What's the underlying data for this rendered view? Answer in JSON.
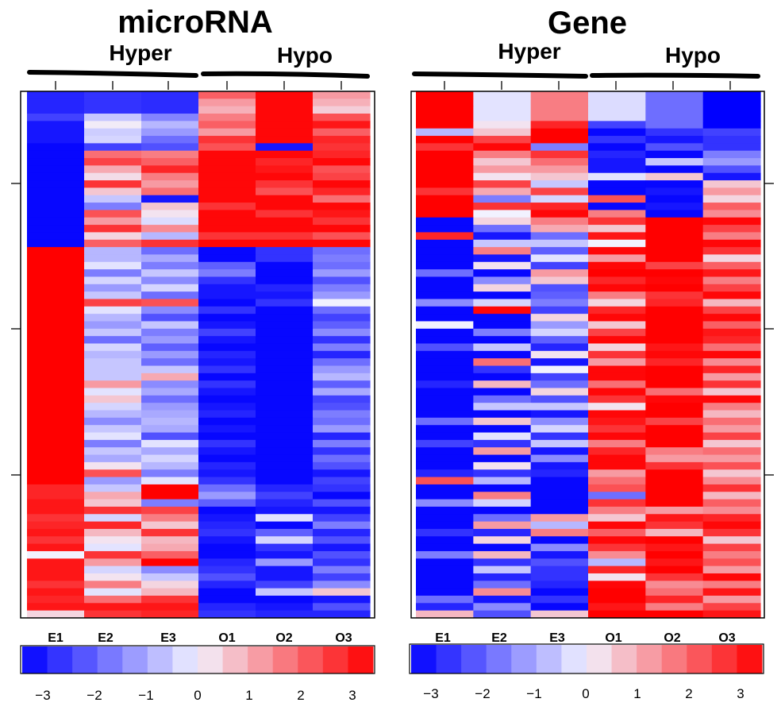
{
  "colors": {
    "low": "#0000ff",
    "mid": "#f2f2ff",
    "high": "#ff0000"
  },
  "chart_data": [
    {
      "type": "heatmap",
      "title": "microRNA",
      "groups": [
        "Hyper",
        "Hypo"
      ],
      "samples": [
        "E1",
        "E2",
        "E3",
        "O1",
        "O2",
        "O3"
      ],
      "color_scale": {
        "min": -3.3,
        "max": 3.3,
        "ticks": [
          "−3",
          "−2",
          "−1",
          "0",
          "1",
          "2",
          "3"
        ]
      },
      "rows": [
        [
          -2.8,
          -2.6,
          -2.7,
          2.0,
          3.2,
          1.2
        ],
        [
          -2.8,
          -2.6,
          -2.7,
          1.2,
          3.2,
          0.9
        ],
        [
          -2.8,
          -2.6,
          -2.7,
          0.9,
          3.2,
          0.5
        ],
        [
          -2.4,
          -0.6,
          -1.5,
          1.6,
          3.2,
          2.2
        ],
        [
          -3.0,
          0.1,
          -0.8,
          2.0,
          3.2,
          3.0
        ],
        [
          -3.0,
          -0.5,
          -1.2,
          1.2,
          3.2,
          2.0
        ],
        [
          -3.0,
          -0.4,
          -1.8,
          2.6,
          3.2,
          2.8
        ],
        [
          -3.2,
          -2.4,
          -2.2,
          2.2,
          -3.0,
          2.6
        ],
        [
          -3.2,
          1.8,
          1.6,
          3.2,
          3.2,
          2.8
        ],
        [
          -3.2,
          2.4,
          2.0,
          3.2,
          2.8,
          3.2
        ],
        [
          -3.2,
          1.0,
          2.8,
          3.2,
          3.0,
          2.2
        ],
        [
          -3.2,
          0.3,
          1.6,
          3.2,
          3.2,
          2.4
        ],
        [
          -3.2,
          2.6,
          1.2,
          3.2,
          2.6,
          3.2
        ],
        [
          -3.2,
          0.6,
          1.8,
          3.2,
          2.2,
          2.8
        ],
        [
          -3.2,
          -0.6,
          -3.0,
          3.2,
          3.2,
          1.8
        ],
        [
          -3.2,
          -1.6,
          0.6,
          2.6,
          3.2,
          3.2
        ],
        [
          -3.2,
          2.2,
          0.2,
          3.2,
          2.6,
          3.0
        ],
        [
          -3.2,
          1.2,
          -0.3,
          3.2,
          3.2,
          2.6
        ],
        [
          -3.2,
          2.6,
          1.4,
          3.2,
          3.2,
          3.2
        ],
        [
          -3.2,
          0.4,
          -0.8,
          2.6,
          2.6,
          2.2
        ],
        [
          -3.2,
          2.0,
          2.6,
          3.2,
          3.2,
          3.2
        ],
        [
          3.3,
          -0.8,
          -1.8,
          -3.2,
          -2.6,
          -1.8
        ],
        [
          3.3,
          -0.8,
          -1.0,
          -3.2,
          -2.6,
          -1.6
        ],
        [
          3.3,
          -0.2,
          -1.6,
          -2.0,
          -3.2,
          -1.8
        ],
        [
          3.3,
          -1.6,
          -0.6,
          -1.6,
          -3.2,
          -1.2
        ],
        [
          3.3,
          -0.4,
          -1.4,
          -2.6,
          -3.2,
          -2.2
        ],
        [
          3.3,
          -1.2,
          -0.4,
          -3.0,
          -2.8,
          -1.6
        ],
        [
          3.3,
          -0.6,
          -1.8,
          -3.0,
          -3.0,
          -1.2
        ],
        [
          3.3,
          2.4,
          2.2,
          -3.2,
          -2.6,
          0.0
        ],
        [
          3.3,
          -0.2,
          -1.4,
          -2.6,
          -3.2,
          -1.8
        ],
        [
          3.3,
          -0.8,
          -2.2,
          -3.2,
          -3.2,
          -2.4
        ],
        [
          3.3,
          -1.2,
          -0.6,
          -3.0,
          -3.2,
          -2.0
        ],
        [
          3.3,
          -0.6,
          -1.6,
          -2.4,
          -3.2,
          -1.4
        ],
        [
          3.3,
          -1.8,
          -1.2,
          -3.0,
          -3.2,
          -2.6
        ],
        [
          3.3,
          -0.4,
          -2.0,
          -3.2,
          -3.2,
          -1.6
        ],
        [
          3.3,
          -0.8,
          -1.2,
          -2.8,
          -3.2,
          -2.8
        ],
        [
          3.3,
          -0.6,
          -1.8,
          -3.0,
          -3.2,
          -1.8
        ],
        [
          3.3,
          -0.6,
          -0.6,
          -2.6,
          -3.2,
          -1.2
        ],
        [
          3.3,
          -0.6,
          1.0,
          -3.2,
          -3.2,
          -0.8
        ],
        [
          3.3,
          1.2,
          -1.4,
          -2.6,
          -3.2,
          -2.0
        ],
        [
          3.3,
          -0.2,
          -1.0,
          -3.0,
          -3.2,
          -1.0
        ],
        [
          3.3,
          0.6,
          -1.8,
          -3.2,
          -3.2,
          -2.4
        ],
        [
          3.3,
          -0.4,
          -1.2,
          -3.0,
          -3.2,
          -2.2
        ],
        [
          3.3,
          -0.8,
          -1.0,
          -2.8,
          -3.2,
          -1.6
        ],
        [
          3.3,
          -1.4,
          -0.8,
          -3.2,
          -3.2,
          -1.8
        ],
        [
          3.3,
          -0.6,
          -1.0,
          -3.0,
          -3.2,
          -1.2
        ],
        [
          3.3,
          -0.2,
          -2.2,
          -3.2,
          -3.2,
          -2.8
        ],
        [
          3.3,
          -1.6,
          -0.2,
          -2.6,
          -3.2,
          -1.6
        ],
        [
          3.3,
          -0.6,
          -1.0,
          -3.0,
          -3.2,
          -2.6
        ],
        [
          3.3,
          -1.0,
          -0.4,
          -3.2,
          -3.2,
          -1.8
        ],
        [
          3.3,
          0.2,
          -0.8,
          -2.8,
          -3.2,
          -2.2
        ],
        [
          3.3,
          2.2,
          -1.6,
          -3.0,
          -3.2,
          -3.0
        ],
        [
          3.3,
          -1.2,
          -0.2,
          -2.6,
          -3.2,
          -2.4
        ],
        [
          2.8,
          -0.6,
          3.3,
          -1.8,
          -2.8,
          -2.6
        ],
        [
          2.8,
          1.0,
          3.3,
          -1.2,
          -2.4,
          -3.2
        ],
        [
          3.0,
          0.6,
          -1.6,
          -2.0,
          -2.8,
          -2.2
        ],
        [
          3.0,
          2.6,
          2.4,
          -3.2,
          -3.0,
          -3.0
        ],
        [
          2.6,
          -0.4,
          1.6,
          -3.0,
          -0.2,
          -2.4
        ],
        [
          2.8,
          2.8,
          0.6,
          -2.8,
          -3.2,
          -1.6
        ],
        [
          3.0,
          0.8,
          2.6,
          -2.6,
          -2.0,
          -2.8
        ],
        [
          2.6,
          0.2,
          0.8,
          -3.0,
          -0.4,
          -2.2
        ],
        [
          3.0,
          -0.2,
          1.0,
          -3.2,
          -2.6,
          -3.0
        ],
        [
          0.0,
          2.6,
          2.0,
          -3.2,
          -3.0,
          -2.2
        ],
        [
          3.0,
          1.2,
          3.3,
          -2.8,
          -1.2,
          -2.6
        ],
        [
          3.0,
          -0.4,
          -1.4,
          -2.6,
          -3.0,
          -1.6
        ],
        [
          3.0,
          0.2,
          -0.6,
          -2.2,
          -3.0,
          -2.4
        ],
        [
          2.6,
          1.6,
          0.4,
          -2.8,
          -2.4,
          -1.4
        ],
        [
          3.0,
          -0.2,
          0.8,
          -3.2,
          -0.6,
          0.6
        ],
        [
          2.8,
          1.8,
          2.6,
          -3.2,
          -3.2,
          -3.0
        ],
        [
          3.0,
          3.0,
          3.0,
          -2.8,
          -3.0,
          -2.2
        ],
        [
          0.4,
          2.6,
          2.8,
          -2.6,
          -2.8,
          -2.8
        ]
      ]
    },
    {
      "type": "heatmap",
      "title": "Gene",
      "groups": [
        "Hyper",
        "Hypo"
      ],
      "samples": [
        "E1",
        "E2",
        "E3",
        "O1",
        "O2",
        "O3"
      ],
      "color_scale": {
        "min": -3.3,
        "max": 3.3,
        "ticks": [
          "−3",
          "−2",
          "−1",
          "0",
          "1",
          "2",
          "3"
        ]
      },
      "rows": [
        [
          3.3,
          -0.2,
          1.6,
          -0.3,
          -1.8,
          -3.3
        ],
        [
          3.3,
          -0.2,
          1.6,
          -0.3,
          -1.8,
          -3.3
        ],
        [
          3.3,
          -0.2,
          1.6,
          -0.3,
          -1.8,
          -3.3
        ],
        [
          3.3,
          -0.2,
          1.6,
          -0.3,
          -1.8,
          -3.3
        ],
        [
          3.3,
          0.2,
          2.8,
          -2.4,
          -1.8,
          -3.3
        ],
        [
          -0.8,
          0.6,
          3.3,
          -3.2,
          -2.6,
          -2.4
        ],
        [
          3.3,
          2.4,
          3.3,
          -2.6,
          -3.0,
          -2.6
        ],
        [
          2.6,
          3.2,
          -1.6,
          -3.2,
          -2.2,
          -2.6
        ],
        [
          3.3,
          1.6,
          2.6,
          -2.8,
          -3.2,
          -1.6
        ],
        [
          3.3,
          0.6,
          1.8,
          -3.0,
          -0.6,
          -1.2
        ],
        [
          3.3,
          1.2,
          1.2,
          -3.0,
          -3.2,
          -2.2
        ],
        [
          3.3,
          0.2,
          0.6,
          -0.2,
          0.6,
          -3.0
        ],
        [
          3.3,
          2.4,
          -0.6,
          -3.2,
          -3.2,
          0.6
        ],
        [
          2.6,
          1.0,
          2.4,
          -3.2,
          -3.0,
          1.2
        ],
        [
          3.3,
          -1.6,
          -0.4,
          2.2,
          -3.2,
          0.4
        ],
        [
          3.3,
          2.6,
          2.8,
          -3.2,
          -3.0,
          2.0
        ],
        [
          3.3,
          0.0,
          3.2,
          1.6,
          -3.2,
          1.4
        ],
        [
          -3.2,
          0.4,
          1.6,
          2.6,
          3.3,
          3.2
        ],
        [
          -3.2,
          -1.8,
          1.0,
          0.6,
          3.3,
          2.4
        ],
        [
          2.8,
          -3.0,
          -1.8,
          3.0,
          3.3,
          1.6
        ],
        [
          -3.2,
          -0.6,
          -0.6,
          0.0,
          3.3,
          3.2
        ],
        [
          -3.2,
          1.6,
          -2.0,
          3.2,
          3.3,
          2.6
        ],
        [
          -3.2,
          -3.0,
          -0.2,
          1.2,
          3.3,
          0.4
        ],
        [
          -3.2,
          0.2,
          -2.4,
          3.2,
          2.4,
          2.0
        ],
        [
          -1.8,
          -3.2,
          1.2,
          3.3,
          3.3,
          3.0
        ],
        [
          -3.2,
          -1.4,
          0.6,
          2.8,
          3.2,
          1.6
        ],
        [
          -3.2,
          0.4,
          -2.2,
          3.2,
          3.3,
          2.4
        ],
        [
          -3.2,
          -3.2,
          -2.0,
          1.6,
          2.6,
          3.2
        ],
        [
          -1.4,
          -0.4,
          -1.6,
          0.4,
          2.8,
          0.8
        ],
        [
          -3.2,
          3.2,
          -2.4,
          2.8,
          3.3,
          2.4
        ],
        [
          -3.2,
          -3.2,
          0.4,
          3.2,
          3.3,
          3.2
        ],
        [
          0.0,
          -3.2,
          -1.2,
          0.6,
          3.3,
          2.0
        ],
        [
          -3.2,
          -1.6,
          -0.4,
          2.4,
          3.3,
          3.0
        ],
        [
          -3.2,
          -3.2,
          -2.0,
          3.2,
          3.3,
          2.8
        ],
        [
          -2.2,
          -0.6,
          -2.8,
          0.4,
          3.0,
          1.8
        ],
        [
          -3.2,
          -3.2,
          0.2,
          2.6,
          3.2,
          3.2
        ],
        [
          -3.2,
          1.8,
          -3.0,
          1.2,
          2.8,
          1.4
        ],
        [
          -3.2,
          -2.6,
          0.0,
          3.2,
          3.3,
          2.8
        ],
        [
          -3.2,
          -3.2,
          -2.4,
          3.2,
          3.3,
          1.2
        ],
        [
          -2.8,
          0.8,
          -1.8,
          1.8,
          3.3,
          2.6
        ],
        [
          -3.2,
          -3.2,
          0.4,
          3.2,
          1.8,
          0.6
        ],
        [
          -3.2,
          -1.8,
          -2.2,
          2.6,
          3.2,
          3.2
        ],
        [
          -3.2,
          -0.6,
          -0.6,
          0.2,
          3.3,
          1.6
        ],
        [
          -3.2,
          -3.2,
          -3.0,
          3.2,
          3.3,
          0.8
        ],
        [
          -1.8,
          0.6,
          -1.4,
          3.0,
          2.4,
          1.8
        ],
        [
          -3.2,
          -3.2,
          -0.4,
          2.6,
          3.3,
          1.2
        ],
        [
          -3.2,
          -0.2,
          -2.6,
          3.2,
          3.3,
          2.4
        ],
        [
          -2.4,
          -2.6,
          -0.6,
          1.6,
          3.3,
          0.6
        ],
        [
          -3.2,
          1.2,
          -3.0,
          2.8,
          1.6,
          1.8
        ],
        [
          -3.2,
          -3.2,
          -1.4,
          3.2,
          1.2,
          1.2
        ],
        [
          -3.2,
          0.2,
          -3.0,
          3.2,
          2.6,
          2.2
        ],
        [
          -2.8,
          -2.6,
          -2.8,
          1.2,
          3.3,
          0.6
        ],
        [
          2.2,
          -0.8,
          -3.2,
          1.8,
          3.3,
          1.4
        ],
        [
          -3.2,
          -3.2,
          -3.2,
          2.2,
          3.3,
          2.6
        ],
        [
          -3.2,
          1.6,
          -3.2,
          -1.8,
          3.3,
          0.8
        ],
        [
          -1.4,
          -0.4,
          -3.2,
          2.6,
          3.3,
          2.0
        ],
        [
          -3.2,
          -3.2,
          -3.2,
          1.6,
          1.2,
          1.4
        ],
        [
          -3.2,
          -1.8,
          1.2,
          0.6,
          3.0,
          2.8
        ],
        [
          -3.2,
          1.2,
          -0.8,
          3.2,
          2.6,
          3.2
        ],
        [
          -2.6,
          -2.8,
          1.6,
          2.0,
          0.8,
          2.6
        ],
        [
          -3.2,
          0.4,
          -3.2,
          3.2,
          3.3,
          0.6
        ],
        [
          -3.2,
          -3.2,
          -1.4,
          2.6,
          3.0,
          2.4
        ],
        [
          -1.6,
          0.8,
          -3.0,
          1.4,
          3.3,
          1.6
        ],
        [
          -3.2,
          -2.6,
          -2.2,
          -0.8,
          3.0,
          2.2
        ],
        [
          -3.2,
          -0.6,
          -2.6,
          2.8,
          3.3,
          1.2
        ],
        [
          -3.2,
          -2.8,
          -2.6,
          0.2,
          2.6,
          3.2
        ],
        [
          -3.2,
          -1.8,
          -2.8,
          3.2,
          1.4,
          1.6
        ],
        [
          -3.2,
          1.4,
          -3.2,
          3.3,
          1.8,
          3.0
        ],
        [
          -1.8,
          -3.0,
          -2.6,
          3.3,
          2.8,
          1.2
        ],
        [
          -2.8,
          -1.4,
          -3.2,
          3.0,
          1.6,
          2.4
        ],
        [
          0.8,
          -2.2,
          0.6,
          3.3,
          3.3,
          3.0
        ]
      ]
    }
  ]
}
